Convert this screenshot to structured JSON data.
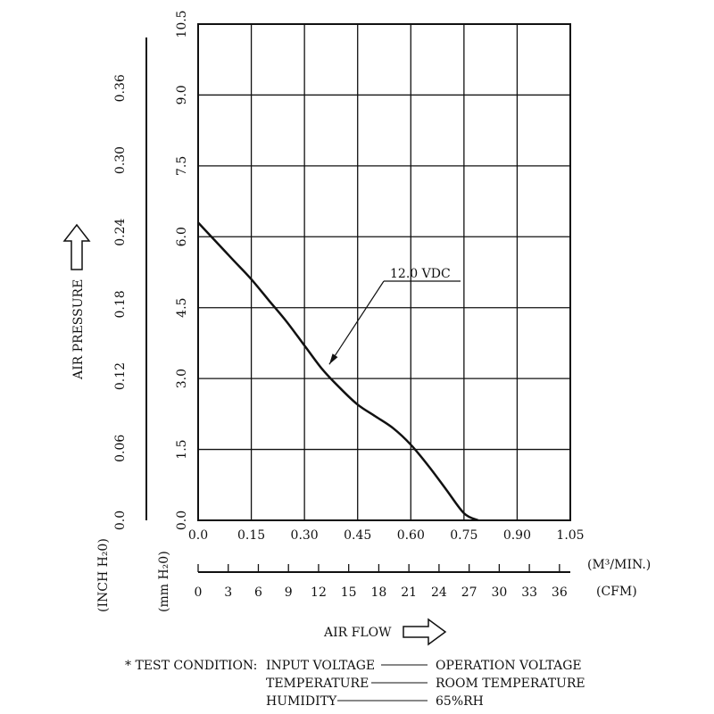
{
  "chart_data": {
    "type": "line",
    "x_axis": {
      "label": "AIR FLOW",
      "unit_primary": "(M³/MIN.)",
      "unit_secondary": "(CFM)",
      "range": [
        0,
        1.05
      ],
      "ticks_m3min": [
        "0.0",
        "0.15",
        "0.30",
        "0.45",
        "0.60",
        "0.75",
        "0.90",
        "1.05"
      ],
      "ticks_cfm": [
        "0",
        "3",
        "6",
        "9",
        "12",
        "15",
        "18",
        "21",
        "24",
        "27",
        "30",
        "33",
        "36"
      ]
    },
    "y_axis": {
      "label": "AIR PRESSURE",
      "unit_mm": "(mm H₂0)",
      "unit_inch": "(INCH H₂0)",
      "range": [
        0,
        10.5
      ],
      "ticks_mm": [
        "0.0",
        "1.5",
        "3.0",
        "4.5",
        "6.0",
        "7.5",
        "9.0",
        "10.5"
      ],
      "ticks_inch": [
        "0.0",
        "0.06",
        "0.12",
        "0.18",
        "0.24",
        "0.30",
        "0.36"
      ]
    },
    "grid": true,
    "series": [
      {
        "name": "12.0 VDC",
        "x": [
          0.0,
          0.05,
          0.1,
          0.15,
          0.2,
          0.25,
          0.3,
          0.35,
          0.4,
          0.45,
          0.5,
          0.55,
          0.6,
          0.65,
          0.7,
          0.75,
          0.79
        ],
        "y": [
          6.3,
          5.9,
          5.5,
          5.1,
          4.65,
          4.2,
          3.7,
          3.2,
          2.8,
          2.45,
          2.2,
          1.95,
          1.6,
          1.15,
          0.65,
          0.15,
          0.0
        ]
      }
    ],
    "annotation": {
      "text": "12.0 VDC",
      "target_x": 0.37,
      "target_y": 3.3
    }
  },
  "test_condition": {
    "prefix": "* TEST CONDITION:",
    "rows": [
      {
        "key": "INPUT VOLTAGE",
        "value": "OPERATION VOLTAGE"
      },
      {
        "key": "TEMPERATURE",
        "value": "ROOM TEMPERATURE"
      },
      {
        "key": "HUMIDITY",
        "value": "65%RH"
      }
    ]
  },
  "icons": {
    "y_arrow": "hollow-arrow-up-icon",
    "x_arrow": "hollow-arrow-right-icon"
  }
}
